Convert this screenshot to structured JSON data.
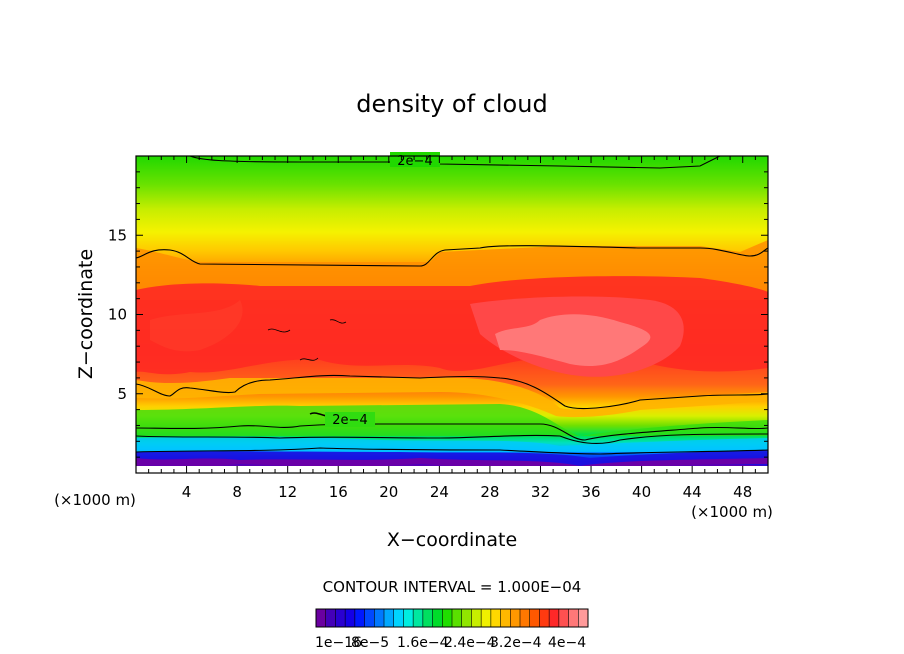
{
  "chart_data": {
    "type": "heatmap",
    "title": "density of cloud",
    "xlabel": "X−coordinate",
    "ylabel": "Z−coordinate",
    "x_unit": "(×1000 m)",
    "y_unit": "(×1000 m)",
    "xlim": [
      0,
      50
    ],
    "ylim": [
      0,
      20
    ],
    "x_ticks": [
      4,
      8,
      12,
      16,
      20,
      24,
      28,
      32,
      36,
      40,
      44,
      48
    ],
    "y_ticks": [
      5,
      10,
      15
    ],
    "contour_interval_label": "CONTOUR INTERVAL = 1.000E−04",
    "contour_labels": [
      {
        "text": "2e−4",
        "x": 20.5,
        "z": 19.5
      },
      {
        "text": "2e−4",
        "x": 15.5,
        "z": 3.4
      }
    ],
    "colorbar": {
      "tick_labels": [
        "1e−16",
        "8e−5",
        "1.6e−4",
        "2.4e−4",
        "3.2e−4",
        "4e−4"
      ],
      "colors": [
        "#6a00a0",
        "#4400b8",
        "#2a00d0",
        "#1400e6",
        "#0018ff",
        "#0048ff",
        "#0078ff",
        "#00a8ff",
        "#00d4ff",
        "#00eee0",
        "#00e8a0",
        "#00e060",
        "#00dc2a",
        "#20de00",
        "#5ae000",
        "#90e600",
        "#c8ee00",
        "#f0f000",
        "#ffd800",
        "#ffb800",
        "#ff9800",
        "#ff7800",
        "#ff5800",
        "#ff3a10",
        "#ff2828",
        "#ff5050",
        "#ff7878",
        "#ff9a9a"
      ]
    },
    "field_levels_bottom_to_top": [
      {
        "z": 0.5,
        "value": "1e-16"
      },
      {
        "z": 1.5,
        "value": "8e-5"
      },
      {
        "z": 3.0,
        "value": "2e-4"
      },
      {
        "z": 5.0,
        "value": "3e-4"
      },
      {
        "z": 8.0,
        "value": "3.8e-4"
      },
      {
        "z": 13.5,
        "value": "3e-4"
      },
      {
        "z": 19.5,
        "value": "2e-4"
      }
    ]
  }
}
